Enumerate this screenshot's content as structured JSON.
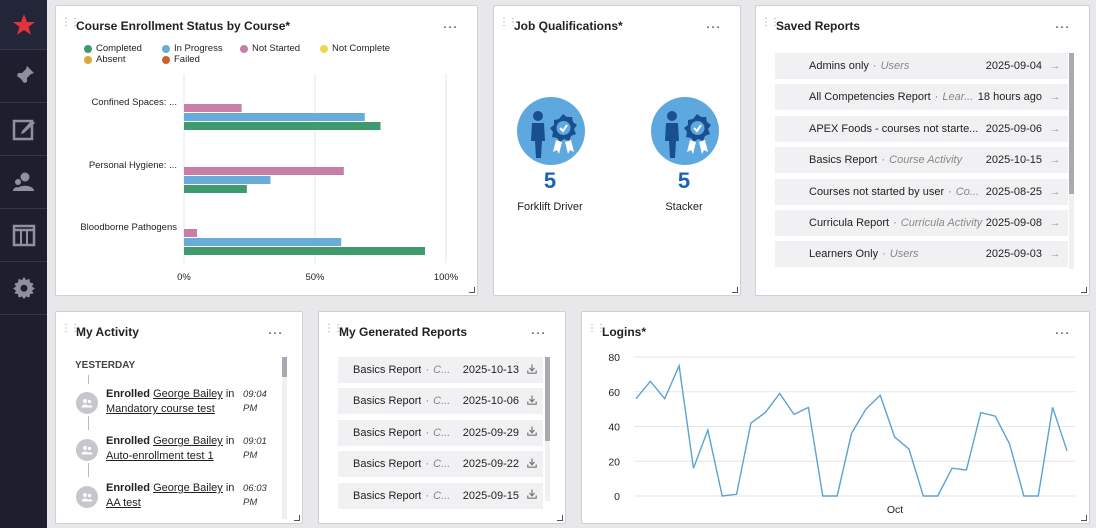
{
  "sidebar": {
    "items": [
      {
        "icon": "star-logo-icon"
      },
      {
        "icon": "pin-icon"
      },
      {
        "icon": "edit-icon"
      },
      {
        "icon": "users-icon"
      },
      {
        "icon": "columns-icon"
      },
      {
        "icon": "gear-icon"
      }
    ]
  },
  "enrollment": {
    "title": "Course Enrollment Status by Course*",
    "menu": "…",
    "legend": [
      {
        "name": "Completed",
        "color": "#3f9a6d"
      },
      {
        "name": "In Progress",
        "color": "#68add9"
      },
      {
        "name": "Not Started",
        "color": "#c77ea7"
      },
      {
        "name": "Not Complete",
        "color": "#efd850"
      },
      {
        "name": "Absent",
        "color": "#d9a83a"
      },
      {
        "name": "Failed",
        "color": "#c4642a"
      }
    ]
  },
  "chart_data": {
    "type": "bar",
    "orientation": "horizontal",
    "categories": [
      "Confined Spaces: ...",
      "Personal Hygiene: ...",
      "Bloodborne Pathogens"
    ],
    "series": [
      {
        "name": "Not Started",
        "values": [
          22,
          61,
          5
        ]
      },
      {
        "name": "In Progress",
        "values": [
          69,
          33,
          60
        ]
      },
      {
        "name": "Completed",
        "values": [
          75,
          24,
          92
        ]
      }
    ],
    "x_ticks": [
      "0%",
      "50%",
      "100%"
    ],
    "xlim": [
      0,
      100
    ],
    "grid": true,
    "legend_position": "top"
  },
  "job_qualifications": {
    "title": "Job Qualifications*",
    "menu": "…",
    "items": [
      {
        "count": "5",
        "label": "Forklift Driver"
      },
      {
        "count": "5",
        "label": "Stacker"
      }
    ]
  },
  "saved_reports": {
    "title": "Saved Reports",
    "menu": "…",
    "sep": "·",
    "rows": [
      {
        "name": "Admins only",
        "type": "Users",
        "date": "2025-09-04"
      },
      {
        "name": "All Competencies Report",
        "type": "Lear...",
        "date": "18 hours ago"
      },
      {
        "name": "APEX Foods - courses not starte...",
        "type": "",
        "date": "2025-09-06"
      },
      {
        "name": "Basics Report",
        "type": "Course Activity",
        "date": "2025-10-15"
      },
      {
        "name": "Courses not started by user",
        "type": "Co...",
        "date": "2025-08-25"
      },
      {
        "name": "Curricula Report",
        "type": "Curricula Activity",
        "date": "2025-09-08"
      },
      {
        "name": "Learners Only",
        "type": "Users",
        "date": "2025-09-03"
      }
    ]
  },
  "my_activity": {
    "title": "My Activity",
    "menu": "…",
    "group": "YESTERDAY",
    "items": [
      {
        "verb": "Enrolled",
        "user": "George Bailey",
        "in": "in",
        "course": "Mandatory course test",
        "time": "09:04 PM"
      },
      {
        "verb": "Enrolled",
        "user": "George Bailey",
        "in": "in",
        "course": "Auto-enrollment test 1",
        "time": "09:01 PM"
      },
      {
        "verb": "Enrolled",
        "user": "George Bailey",
        "in": "in",
        "course": "AA test",
        "time": "06:03 PM"
      }
    ]
  },
  "generated_reports": {
    "title": "My Generated Reports",
    "menu": "…",
    "sep": "·",
    "rows": [
      {
        "name": "Basics Report",
        "type": "C...",
        "date": "2025-10-13"
      },
      {
        "name": "Basics Report",
        "type": "C...",
        "date": "2025-10-06"
      },
      {
        "name": "Basics Report",
        "type": "C...",
        "date": "2025-09-29"
      },
      {
        "name": "Basics Report",
        "type": "C...",
        "date": "2025-09-22"
      },
      {
        "name": "Basics Report",
        "type": "C...",
        "date": "2025-09-15"
      }
    ]
  },
  "logins": {
    "title": "Logins*",
    "menu": "…",
    "chart_data": {
      "type": "line",
      "y_ticks": [
        "0",
        "20",
        "40",
        "60",
        "80"
      ],
      "ylim": [
        0,
        80
      ],
      "x_label_tick": "Oct",
      "grid": true,
      "color": "#5aa3d4",
      "values": [
        56,
        66,
        56,
        75,
        16,
        38,
        0,
        1,
        42,
        48,
        59,
        47,
        51,
        0,
        0,
        36,
        50,
        58,
        34,
        27,
        0,
        0,
        16,
        15,
        48,
        46,
        30,
        0,
        0,
        51,
        26
      ]
    }
  }
}
